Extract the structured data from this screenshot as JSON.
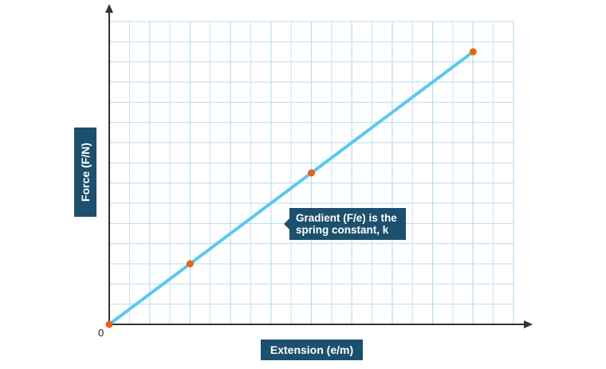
{
  "chart_data": {
    "type": "line",
    "title": "",
    "xlabel": "Extension (e/m)",
    "ylabel": "Force (F/N)",
    "origin_label": "0",
    "series": [
      {
        "points": [
          [
            0,
            0
          ],
          [
            2,
            3
          ],
          [
            5,
            7.5
          ],
          [
            9,
            13.5
          ]
        ]
      }
    ],
    "xlim": [
      0,
      10
    ],
    "ylim": [
      0,
      15
    ],
    "grid": true,
    "annotation": {
      "line1": "Gradient (F/e) is the",
      "line2": "spring constant, k"
    },
    "colors": {
      "line": "#5bc8ef",
      "point": "#e8631a",
      "grid": "#b9ddf0",
      "axis": "#333333",
      "label_box": "#1d4f6e"
    }
  }
}
